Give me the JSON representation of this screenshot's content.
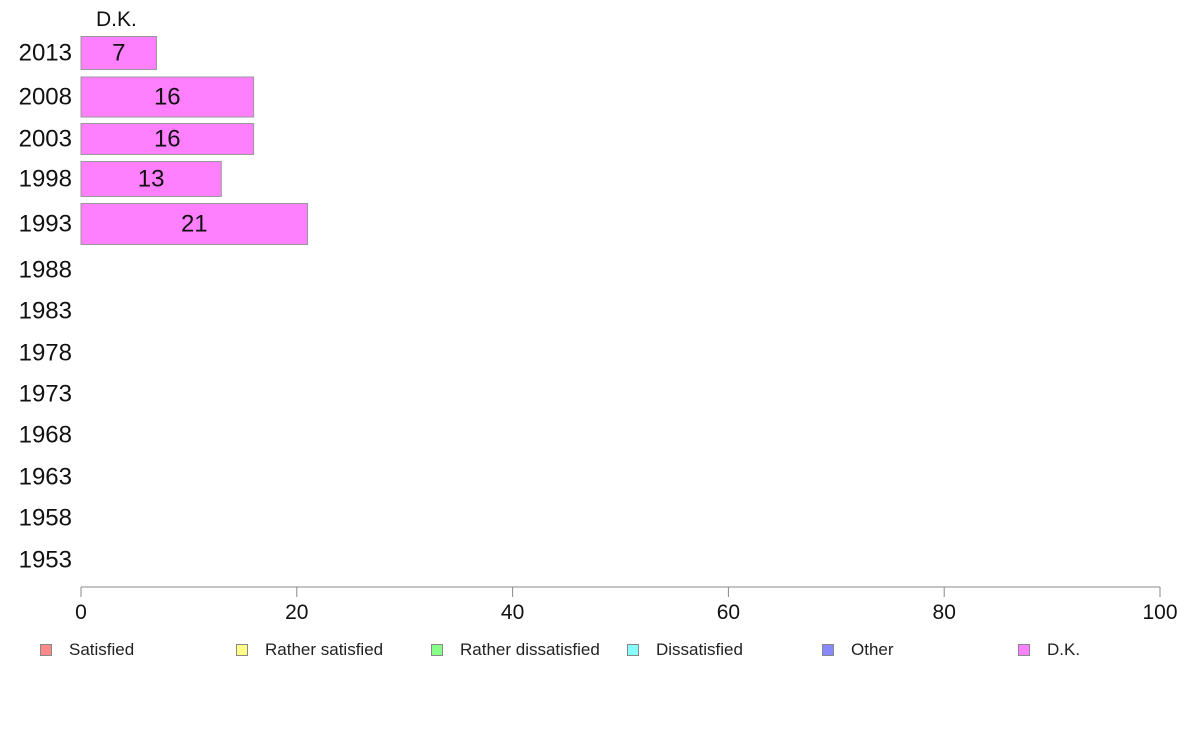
{
  "chart_data": {
    "type": "bar",
    "orientation": "horizontal",
    "title": "",
    "panel_title": "D.K.",
    "xlabel": "",
    "ylabel": "",
    "xlim": [
      0,
      100
    ],
    "x_ticks": [
      "0",
      "20",
      "40",
      "60",
      "80",
      "100"
    ],
    "categories": [
      "2013",
      "2008",
      "2003",
      "1998",
      "1993",
      "1988",
      "1983",
      "1978",
      "1973",
      "1968",
      "1963",
      "1958",
      "1953"
    ],
    "series": [
      {
        "name": "D.K.",
        "color": "#ff80ff",
        "values": [
          7,
          16,
          16,
          13,
          21,
          null,
          null,
          null,
          null,
          null,
          null,
          null,
          null
        ],
        "labels": [
          "7",
          "16",
          "16",
          "13",
          "21",
          "",
          "",
          "",
          "",
          "",
          "",
          "",
          ""
        ]
      }
    ],
    "grid": false,
    "legend_position": "bottom"
  },
  "legend": [
    {
      "label": "Satisfied",
      "color": "#ff8888"
    },
    {
      "label": "Rather satisfied",
      "color": "#ffff88"
    },
    {
      "label": "Rather dissatisfied",
      "color": "#88ff88"
    },
    {
      "label": "Dissatisfied",
      "color": "#88ffff"
    },
    {
      "label": "Other",
      "color": "#8888ff"
    },
    {
      "label": "D.K.",
      "color": "#ff80ff"
    }
  ]
}
